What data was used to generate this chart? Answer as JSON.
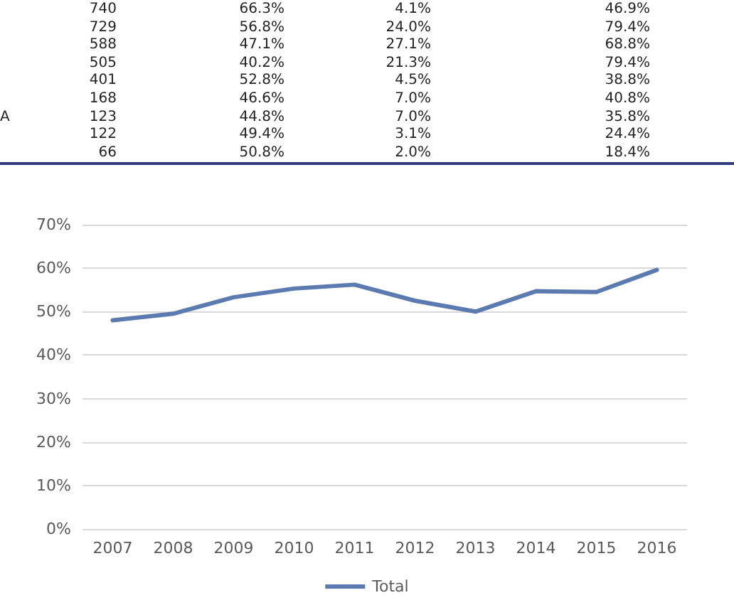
{
  "chart_data": [
    {
      "type": "other",
      "categories": [
        null,
        null,
        null,
        null,
        null,
        null,
        "A",
        null,
        null
      ],
      "annotations": [
        "740",
        "66.3%",
        "4.1%",
        "46.9%",
        "729",
        "56.8%",
        "24.0%",
        "79.4%",
        "588",
        "47.1%",
        "27.1%",
        "68.8%",
        "505",
        "40.2%",
        "21.3%",
        "79.4%",
        "401",
        "52.8%",
        "4.5%",
        "38.8%",
        "168",
        "46.6%",
        "7.0%",
        "40.8%",
        "123",
        "44.8%",
        "7.0%",
        "35.8%",
        "122",
        "49.4%",
        "3.1%",
        "24.4%",
        "66",
        "50.8%",
        "2.0%",
        "18.4%"
      ]
    },
    {
      "type": "line",
      "categories": [
        "2007",
        "2008",
        "2009",
        "2010",
        "2011",
        "2012",
        "2013",
        "2014",
        "2015",
        "2016"
      ],
      "series": [
        {
          "name": "Total",
          "color": "#5b7bb0",
          "values": [
            0.48,
            0.495,
            0.533,
            0.553,
            0.562,
            0.525,
            0.5,
            0.547,
            0.545,
            0.596
          ]
        }
      ],
      "ylim": [
        0,
        0.7
      ],
      "yticks": [
        {
          "value": 0,
          "label": "0%"
        },
        {
          "value": 0.1,
          "label": "10%"
        },
        {
          "value": 0.2,
          "label": "20%"
        },
        {
          "value": 0.3,
          "label": "30%"
        },
        {
          "value": 0.4,
          "label": "40%"
        },
        {
          "value": 0.5,
          "label": "50%"
        },
        {
          "value": 0.6,
          "label": "60%"
        },
        {
          "value": 0.7,
          "label": "70%"
        }
      ],
      "grid": "y",
      "legend": "bottom",
      "marker": "none",
      "line_style": "solid"
    }
  ]
}
